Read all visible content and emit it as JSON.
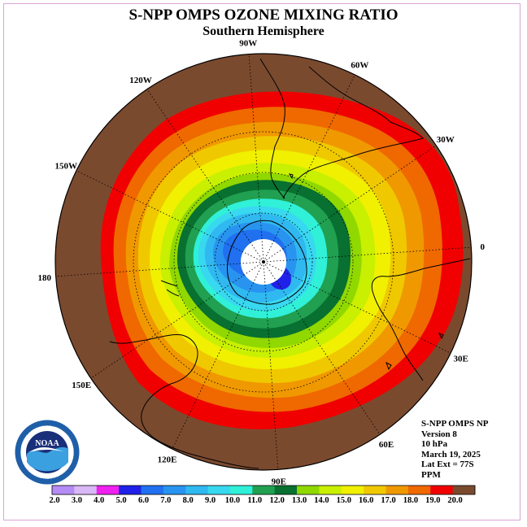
{
  "title": "S-NPP OMPS OZONE MIXING RATIO",
  "subtitle": "Southern Hemisphere",
  "logo_text": "NOAA",
  "logo_ring_text": "NATIONAL OCEANIC AND ATMOSPHERIC ADMINISTRATION · U.S. DEPARTMENT OF COMMERCE",
  "longitude_labels": [
    "90W",
    "60W",
    "30W",
    "0",
    "30E",
    "60E",
    "90E",
    "120E",
    "150E",
    "180",
    "150W",
    "120W"
  ],
  "info": {
    "instrument": "S-NPP OMPS NP",
    "version": "Version 8",
    "level": "10 hPa",
    "date": "March 19, 2025",
    "lat_ext": "Lat Ext = 77S",
    "units": "PPM"
  },
  "colorbar": {
    "ticks": [
      "2.0",
      "3.0",
      "4.0",
      "5.0",
      "6.0",
      "7.0",
      "8.0",
      "9.0",
      "10.0",
      "11.0",
      "12.0",
      "13.0",
      "14.0",
      "15.0",
      "16.0",
      "17.0",
      "18.0",
      "19.0",
      "20.0"
    ],
    "colors": [
      "#b58cf5",
      "#d9b8f7",
      "#f020f0",
      "#2020e8",
      "#2070f0",
      "#2894f0",
      "#30b8f0",
      "#38d8f0",
      "#30f0d8",
      "#20a050",
      "#087030",
      "#90d800",
      "#c8f000",
      "#f0f000",
      "#f0c800",
      "#f09800",
      "#f06800",
      "#f00000",
      "#7a4a2f"
    ]
  },
  "map_data": {
    "projection": "south polar stereographic",
    "variable": "ozone mixing ratio",
    "units": "PPM",
    "pressure_level_hPa": 10,
    "date": "March 19, 2025",
    "latitude_extent": "77S",
    "contour_levels": [
      2,
      3,
      4,
      5,
      6,
      7,
      8,
      9,
      10,
      11,
      12,
      13,
      14,
      15,
      16,
      17,
      18,
      19,
      20
    ]
  }
}
